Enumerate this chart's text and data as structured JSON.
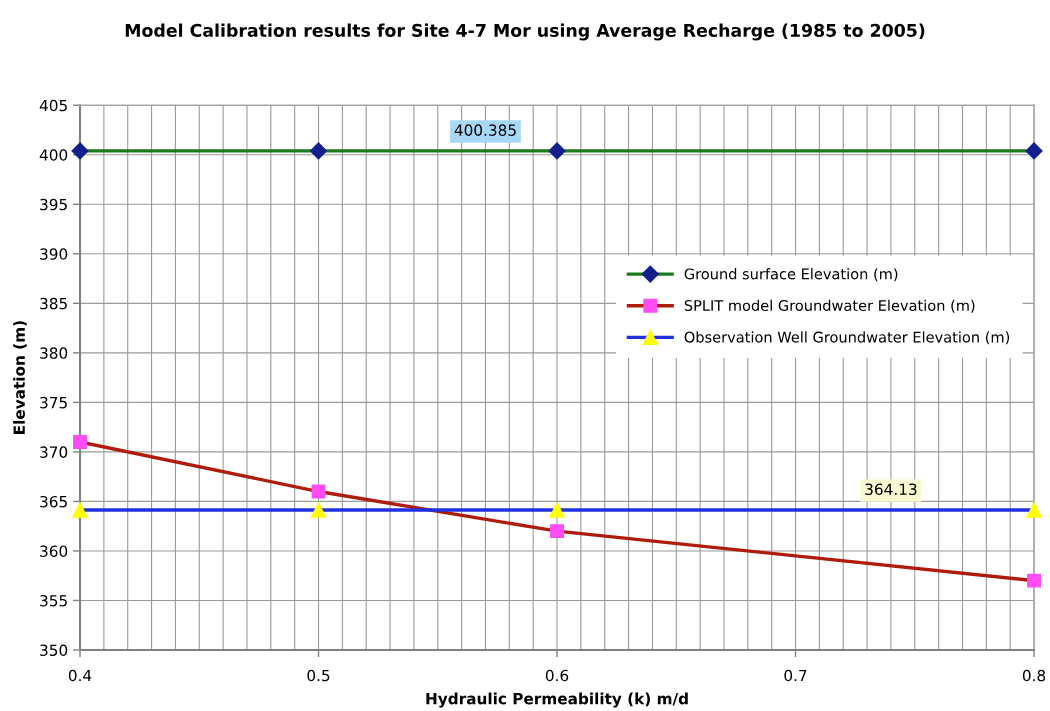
{
  "chart_data": {
    "type": "line",
    "title": "Model Calibration results for Site 4-7 Mor using Average Recharge (1985 to 2005)",
    "xlabel": "Hydraulic Permeability (k) m/d",
    "ylabel": "Elevation (m)",
    "x": [
      0.4,
      0.5,
      0.6,
      0.8
    ],
    "series": [
      {
        "name": "Ground surface Elevation (m)",
        "color": "#1b7b1b",
        "colors": [
          "#13208c",
          "#13208c",
          "#13208c",
          "#13208c"
        ],
        "marker": "diamond",
        "values": [
          400.385,
          400.385,
          400.385,
          400.385
        ]
      },
      {
        "name": "SPLIT model Groundwater Elevation (m)",
        "color": "#b01c0c",
        "colors": [
          "#ff4cf5",
          "#ff4cf5",
          "#ff4cf5",
          "#ff4cf5"
        ],
        "marker": "square",
        "values": [
          371,
          366,
          362,
          357
        ]
      },
      {
        "name": "Observation Well Groundwater Elevation (m)",
        "color": "#2030e0",
        "colors": [
          "#ffff00",
          "#ffff00",
          "#ffff00",
          "#ffff00"
        ],
        "marker": "triangle",
        "values": [
          364.13,
          364.13,
          364.13,
          364.13
        ]
      }
    ],
    "xlim": [
      0.4,
      0.8
    ],
    "xticks": [
      0.4,
      {
        "value": 0.41,
        "label": null
      },
      {
        "value": 0.42,
        "label": null
      },
      {
        "value": 0.43,
        "label": null
      },
      {
        "value": 0.44,
        "label": null
      },
      {
        "value": 0.45,
        "label": null
      },
      {
        "value": 0.46,
        "label": null
      },
      {
        "value": 0.47,
        "label": null
      },
      {
        "value": 0.48,
        "label": null
      },
      {
        "value": 0.49,
        "label": null
      },
      0.5,
      {
        "value": 0.51,
        "label": null
      },
      {
        "value": 0.52,
        "label": null
      },
      {
        "value": 0.53,
        "label": null
      },
      {
        "value": 0.54,
        "label": null
      },
      {
        "value": 0.55,
        "label": null
      },
      {
        "value": 0.56,
        "label": null
      },
      {
        "value": 0.57,
        "label": null
      },
      {
        "value": 0.58,
        "label": null
      },
      {
        "value": 0.59,
        "label": null
      },
      0.6,
      {
        "value": 0.61,
        "label": null
      },
      {
        "value": 0.62,
        "label": null
      },
      {
        "value": 0.63,
        "label": null
      },
      {
        "value": 0.64,
        "label": null
      },
      {
        "value": 0.65,
        "label": null
      },
      {
        "value": 0.66,
        "label": null
      },
      {
        "value": 0.67,
        "label": null
      },
      {
        "value": 0.68,
        "label": null
      },
      {
        "value": 0.69,
        "label": null
      },
      0.7,
      {
        "value": 0.71,
        "label": null
      },
      {
        "value": 0.72,
        "label": null
      },
      {
        "value": 0.73,
        "label": null
      },
      {
        "value": 0.74,
        "label": null
      },
      {
        "value": 0.75,
        "label": null
      },
      {
        "value": 0.76,
        "label": null
      },
      {
        "value": 0.77,
        "label": null
      },
      {
        "value": 0.78,
        "label": null
      },
      {
        "value": 0.79,
        "label": null
      },
      0.8
    ],
    "ylim": [
      350,
      405
    ],
    "yticks": [
      350,
      355,
      360,
      365,
      370,
      375,
      380,
      385,
      390,
      395,
      400,
      405
    ],
    "grid": true,
    "legend": "right",
    "line_style": "solid",
    "annotations": [
      {
        "text": "400.385",
        "x": 0.57,
        "y": 400.385
      },
      {
        "text": "364.13",
        "x": 0.74,
        "y": 364.13
      }
    ]
  }
}
